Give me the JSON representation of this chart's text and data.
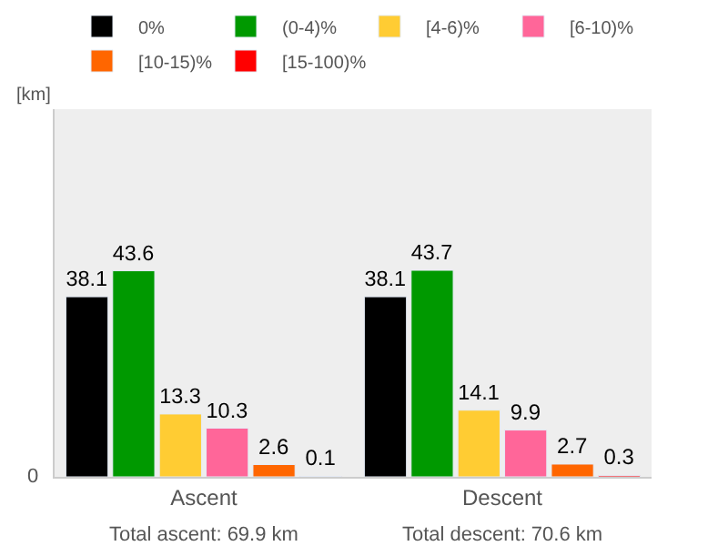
{
  "chart_data": {
    "type": "bar",
    "categories": [
      "Ascent",
      "Descent"
    ],
    "series": [
      {
        "name": "0%",
        "color": "#000000",
        "values": [
          38.1,
          38.1
        ]
      },
      {
        "name": "(0-4)%",
        "color": "#009900",
        "values": [
          43.6,
          43.7
        ]
      },
      {
        "name": "[4-6)%",
        "color": "#ffcc33",
        "values": [
          13.3,
          14.1
        ]
      },
      {
        "name": "[6-10)%",
        "color": "#ff6699",
        "values": [
          10.3,
          9.9
        ]
      },
      {
        "name": "[10-15)%",
        "color": "#ff6600",
        "values": [
          2.6,
          2.7
        ]
      },
      {
        "name": "[15-100)%",
        "color": "#ff0000",
        "values": [
          0.1,
          0.3
        ]
      }
    ],
    "data_labels": true,
    "grid": false,
    "legend": "top",
    "annotations": [
      "[km]",
      "0",
      "Total ascent: 69.9 km",
      "Total descent: 70.6 km"
    ]
  }
}
